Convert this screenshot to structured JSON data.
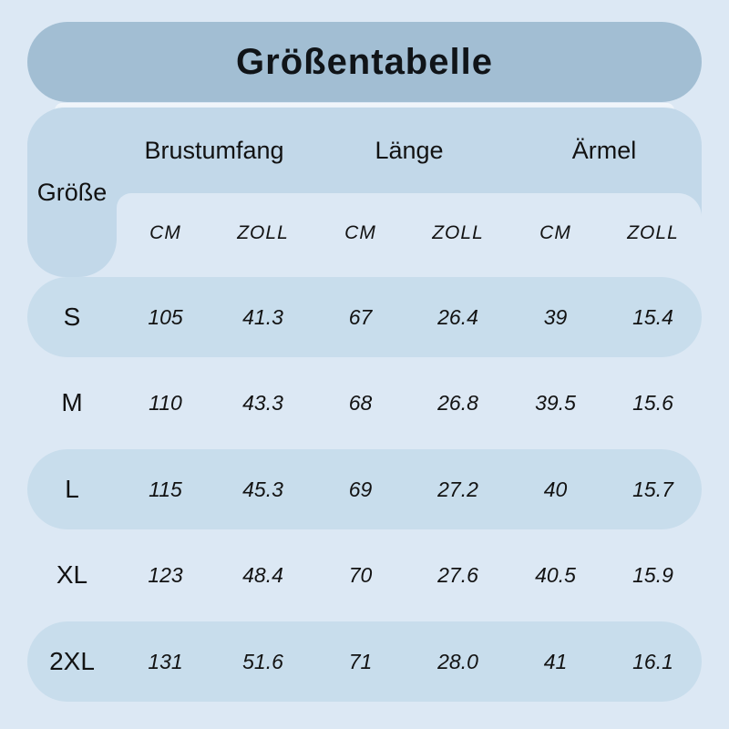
{
  "page": {
    "background_color": "#dce8f4",
    "text_color": "#121212"
  },
  "title": {
    "label": "Größentabelle",
    "pill_color": "#a2bed3"
  },
  "table": {
    "header_color": "#c2d8e9",
    "row_highlight_color": "#c8ddec",
    "size_column_header": "Größe",
    "group_headers": [
      {
        "label": "Brustumfang"
      },
      {
        "label": "Länge"
      },
      {
        "label": "Ärmel"
      }
    ],
    "unit_headers": [
      "CM",
      "ZOLL",
      "CM",
      "ZOLL",
      "CM",
      "ZOLL"
    ],
    "rows": [
      {
        "size": "S",
        "values": [
          "105",
          "41.3",
          "67",
          "26.4",
          "39",
          "15.4"
        ],
        "highlighted": true
      },
      {
        "size": "M",
        "values": [
          "110",
          "43.3",
          "68",
          "26.8",
          "39.5",
          "15.6"
        ],
        "highlighted": false
      },
      {
        "size": "L",
        "values": [
          "115",
          "45.3",
          "69",
          "27.2",
          "40",
          "15.7"
        ],
        "highlighted": true
      },
      {
        "size": "XL",
        "values": [
          "123",
          "48.4",
          "70",
          "27.6",
          "40.5",
          "15.9"
        ],
        "highlighted": false
      },
      {
        "size": "2XL",
        "values": [
          "131",
          "51.6",
          "71",
          "28.0",
          "41",
          "16.1"
        ],
        "highlighted": true
      }
    ]
  },
  "chart_data": {
    "type": "table",
    "title": "Größentabelle",
    "columns": [
      "Größe",
      "Brustumfang CM",
      "Brustumfang ZOLL",
      "Länge CM",
      "Länge ZOLL",
      "Ärmel CM",
      "Ärmel ZOLL"
    ],
    "rows": [
      [
        "S",
        105,
        41.3,
        67,
        26.4,
        39,
        15.4
      ],
      [
        "M",
        110,
        43.3,
        68,
        26.8,
        39.5,
        15.6
      ],
      [
        "L",
        115,
        45.3,
        69,
        27.2,
        40,
        15.7
      ],
      [
        "XL",
        123,
        48.4,
        70,
        27.6,
        40.5,
        15.9
      ],
      [
        "2XL",
        131,
        51.6,
        71,
        28.0,
        41,
        16.1
      ]
    ]
  }
}
